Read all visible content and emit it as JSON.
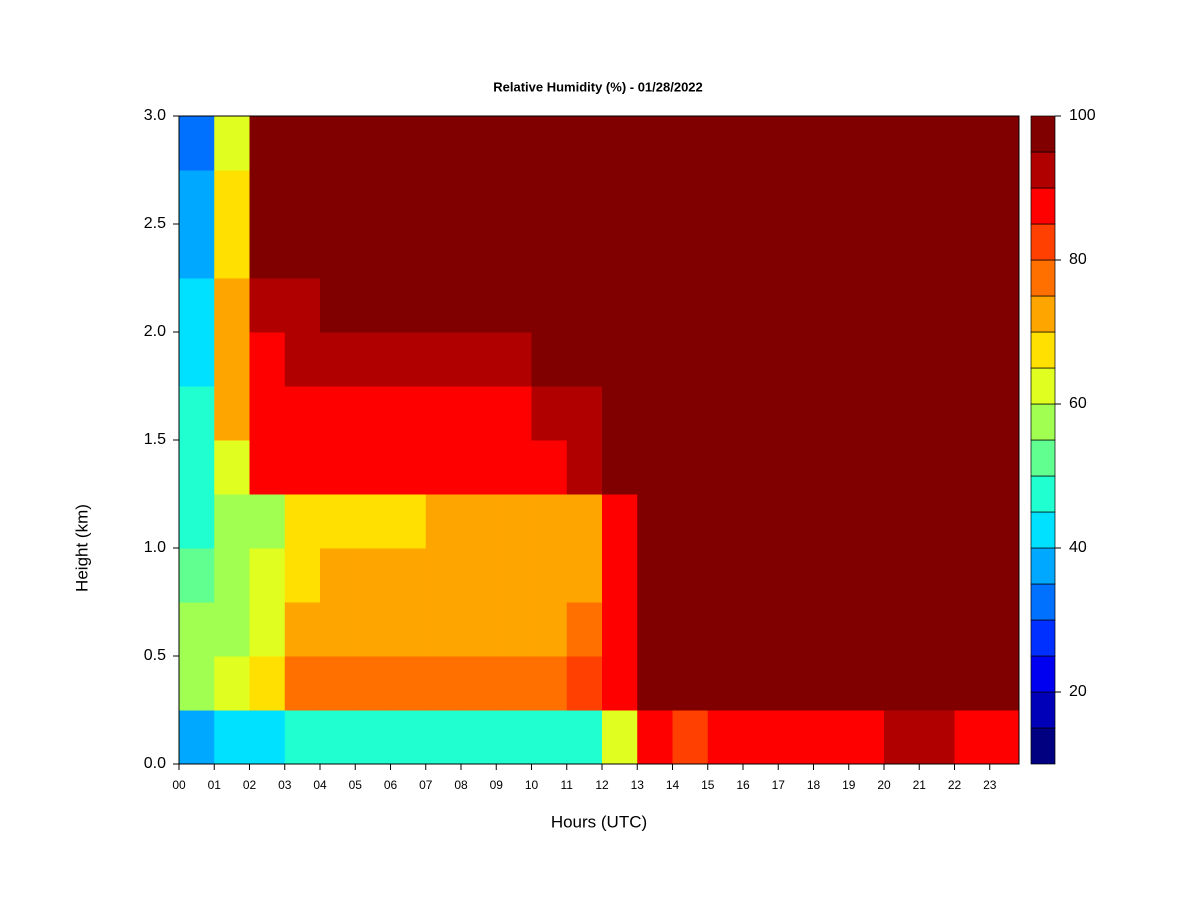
{
  "chart_data": {
    "type": "heatmap",
    "title": "Relative Humidity (%) - 01/28/2022",
    "x_label": "Hours (UTC)",
    "y_label": "Height (km)",
    "x": [
      0,
      1,
      2,
      3,
      4,
      5,
      6,
      7,
      8,
      9,
      10,
      11,
      12,
      13,
      14,
      15,
      16,
      17,
      18,
      19,
      20,
      21,
      22,
      23
    ],
    "y": [
      0,
      0.25,
      0.5,
      0.75,
      1,
      1.25,
      1.5,
      1.75,
      2,
      2.25,
      2.5,
      2.75
    ],
    "z": [
      [
        35,
        40,
        42,
        45,
        45,
        45,
        45,
        45,
        45,
        45,
        45,
        45,
        60,
        85,
        80,
        88,
        88,
        88,
        88,
        88,
        90,
        90,
        88,
        88
      ],
      [
        55,
        62,
        65,
        78,
        78,
        78,
        78,
        78,
        78,
        78,
        78,
        80,
        85,
        98,
        98,
        98,
        98,
        98,
        98,
        98,
        98,
        98,
        98,
        98
      ],
      [
        55,
        58,
        60,
        70,
        70,
        70,
        70,
        72,
        72,
        72,
        72,
        75,
        85,
        98,
        98,
        98,
        98,
        98,
        98,
        98,
        98,
        98,
        98,
        98
      ],
      [
        50,
        55,
        60,
        68,
        70,
        70,
        70,
        72,
        72,
        72,
        72,
        74,
        85,
        98,
        98,
        98,
        98,
        98,
        98,
        98,
        98,
        98,
        98,
        98
      ],
      [
        48,
        55,
        58,
        66,
        68,
        68,
        68,
        70,
        70,
        70,
        70,
        72,
        85,
        98,
        98,
        98,
        98,
        98,
        98,
        98,
        98,
        98,
        98,
        98
      ],
      [
        48,
        62,
        85,
        88,
        88,
        88,
        88,
        88,
        88,
        88,
        88,
        90,
        95,
        98,
        98,
        98,
        98,
        98,
        98,
        98,
        98,
        98,
        98,
        98
      ],
      [
        45,
        70,
        88,
        88,
        88,
        88,
        88,
        88,
        88,
        88,
        90,
        92,
        95,
        98,
        98,
        98,
        98,
        98,
        98,
        98,
        98,
        98,
        98,
        98
      ],
      [
        42,
        72,
        88,
        90,
        92,
        92,
        92,
        92,
        92,
        94,
        95,
        96,
        98,
        98,
        98,
        98,
        98,
        98,
        98,
        98,
        98,
        98,
        98,
        98
      ],
      [
        40,
        70,
        92,
        93,
        95,
        97,
        98,
        98,
        98,
        98,
        98,
        98,
        98,
        98,
        98,
        98,
        98,
        98,
        98,
        98,
        98,
        98,
        98,
        98
      ],
      [
        38,
        68,
        98,
        98,
        98,
        98,
        98,
        98,
        98,
        98,
        98,
        98,
        98,
        98,
        98,
        98,
        98,
        98,
        98,
        98,
        98,
        98,
        98,
        98
      ],
      [
        35,
        65,
        98,
        98,
        98,
        98,
        98,
        98,
        98,
        98,
        98,
        98,
        98,
        98,
        98,
        98,
        98,
        98,
        98,
        98,
        98,
        98,
        98,
        98
      ],
      [
        30,
        62,
        97,
        98,
        98,
        98,
        98,
        98,
        98,
        98,
        98,
        98,
        98,
        98,
        98,
        98,
        98,
        98,
        98,
        98,
        98,
        98,
        98,
        98
      ]
    ],
    "xlim": [
      0,
      23.83
    ],
    "ylim": [
      0,
      3
    ],
    "xticks": [
      {
        "value": 0,
        "label": "00"
      },
      {
        "value": 1,
        "label": "01"
      },
      {
        "value": 2,
        "label": "02"
      },
      {
        "value": 3,
        "label": "03"
      },
      {
        "value": 4,
        "label": "04"
      },
      {
        "value": 5,
        "label": "05"
      },
      {
        "value": 6,
        "label": "06"
      },
      {
        "value": 7,
        "label": "07"
      },
      {
        "value": 8,
        "label": "08"
      },
      {
        "value": 9,
        "label": "09"
      },
      {
        "value": 10,
        "label": "10"
      },
      {
        "value": 11,
        "label": "11"
      },
      {
        "value": 12,
        "label": "12"
      },
      {
        "value": 13,
        "label": "13"
      },
      {
        "value": 14,
        "label": "14"
      },
      {
        "value": 15,
        "label": "15"
      },
      {
        "value": 16,
        "label": "16"
      },
      {
        "value": 17,
        "label": "17"
      },
      {
        "value": 18,
        "label": "18"
      },
      {
        "value": 19,
        "label": "19"
      },
      {
        "value": 20,
        "label": "20"
      },
      {
        "value": 21,
        "label": "21"
      },
      {
        "value": 22,
        "label": "22"
      },
      {
        "value": 23,
        "label": "23"
      }
    ],
    "yticks": [
      {
        "value": 0,
        "label": "0.0"
      },
      0.5,
      {
        "value": 1,
        "label": "1.0"
      },
      1.5,
      {
        "value": 2,
        "label": "2.0"
      },
      2.5,
      {
        "value": 3,
        "label": "3.0"
      }
    ],
    "levels": [
      10,
      15,
      20,
      25,
      30,
      35,
      40,
      45,
      50,
      55,
      60,
      65,
      70,
      75,
      80,
      85,
      90,
      95,
      100
    ],
    "colors": [
      "#000080",
      "#0000b8",
      "#0000f0",
      "#0030ff",
      "#0070ff",
      "#00a8ff",
      "#00e0ff",
      "#20ffd0",
      "#60ff90",
      "#a0ff50",
      "#e0ff20",
      "#ffe000",
      "#ffa500",
      "#ff7000",
      "#ff4000",
      "#ff0000",
      "#b00000",
      "#800000"
    ],
    "colorbar_ticks": [
      20,
      40,
      60,
      80,
      100
    ]
  }
}
